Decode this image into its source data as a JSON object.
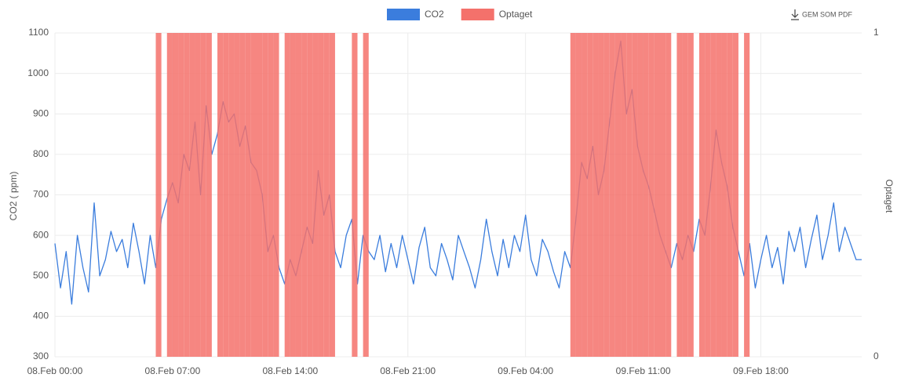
{
  "chart_data": {
    "type": "line",
    "download_label": "GEM SOM PDF",
    "y_label": "CO2 ( ppm)",
    "y2_label": "Optaget",
    "grid": true,
    "legend": "top",
    "x": [
      "08.Feb 00:00",
      "08.Feb 00:20",
      "08.Feb 00:40",
      "08.Feb 01:00",
      "08.Feb 01:20",
      "08.Feb 01:40",
      "08.Feb 02:00",
      "08.Feb 02:20",
      "08.Feb 02:40",
      "08.Feb 03:00",
      "08.Feb 03:20",
      "08.Feb 03:40",
      "08.Feb 04:00",
      "08.Feb 04:20",
      "08.Feb 04:40",
      "08.Feb 05:00",
      "08.Feb 05:20",
      "08.Feb 05:40",
      "08.Feb 06:00",
      "08.Feb 06:20",
      "08.Feb 06:40",
      "08.Feb 07:00",
      "08.Feb 07:20",
      "08.Feb 07:40",
      "08.Feb 08:00",
      "08.Feb 08:20",
      "08.Feb 08:40",
      "08.Feb 09:00",
      "08.Feb 09:20",
      "08.Feb 09:40",
      "08.Feb 10:00",
      "08.Feb 10:20",
      "08.Feb 10:40",
      "08.Feb 11:00",
      "08.Feb 11:20",
      "08.Feb 11:40",
      "08.Feb 12:00",
      "08.Feb 12:20",
      "08.Feb 12:40",
      "08.Feb 13:00",
      "08.Feb 13:20",
      "08.Feb 13:40",
      "08.Feb 14:00",
      "08.Feb 14:20",
      "08.Feb 14:40",
      "08.Feb 15:00",
      "08.Feb 15:20",
      "08.Feb 15:40",
      "08.Feb 16:00",
      "08.Feb 16:20",
      "08.Feb 16:40",
      "08.Feb 17:00",
      "08.Feb 17:20",
      "08.Feb 17:40",
      "08.Feb 18:00",
      "08.Feb 18:20",
      "08.Feb 18:40",
      "08.Feb 19:00",
      "08.Feb 19:20",
      "08.Feb 19:40",
      "08.Feb 20:00",
      "08.Feb 20:20",
      "08.Feb 20:40",
      "08.Feb 21:00",
      "08.Feb 21:20",
      "08.Feb 21:40",
      "08.Feb 22:00",
      "08.Feb 22:20",
      "08.Feb 22:40",
      "08.Feb 23:00",
      "08.Feb 23:20",
      "08.Feb 23:40",
      "09.Feb 00:00",
      "09.Feb 00:20",
      "09.Feb 00:40",
      "09.Feb 01:00",
      "09.Feb 01:20",
      "09.Feb 01:40",
      "09.Feb 02:00",
      "09.Feb 02:20",
      "09.Feb 02:40",
      "09.Feb 03:00",
      "09.Feb 03:20",
      "09.Feb 03:40",
      "09.Feb 04:00",
      "09.Feb 04:20",
      "09.Feb 04:40",
      "09.Feb 05:00",
      "09.Feb 05:20",
      "09.Feb 05:40",
      "09.Feb 06:00",
      "09.Feb 06:20",
      "09.Feb 06:40",
      "09.Feb 07:00",
      "09.Feb 07:20",
      "09.Feb 07:40",
      "09.Feb 08:00",
      "09.Feb 08:20",
      "09.Feb 08:40",
      "09.Feb 09:00",
      "09.Feb 09:20",
      "09.Feb 09:40",
      "09.Feb 10:00",
      "09.Feb 10:20",
      "09.Feb 10:40",
      "09.Feb 11:00",
      "09.Feb 11:20",
      "09.Feb 11:40",
      "09.Feb 12:00",
      "09.Feb 12:20",
      "09.Feb 12:40",
      "09.Feb 13:00",
      "09.Feb 13:20",
      "09.Feb 13:40",
      "09.Feb 14:00",
      "09.Feb 14:20",
      "09.Feb 14:40",
      "09.Feb 15:00",
      "09.Feb 15:20",
      "09.Feb 15:40",
      "09.Feb 16:00",
      "09.Feb 16:20",
      "09.Feb 16:40",
      "09.Feb 17:00",
      "09.Feb 17:20",
      "09.Feb 17:40",
      "09.Feb 18:00",
      "09.Feb 18:20",
      "09.Feb 18:40",
      "09.Feb 19:00",
      "09.Feb 19:20",
      "09.Feb 19:40",
      "09.Feb 20:00",
      "09.Feb 20:20",
      "09.Feb 20:40",
      "09.Feb 21:00",
      "09.Feb 21:20",
      "09.Feb 21:40",
      "09.Feb 22:00",
      "09.Feb 22:20",
      "09.Feb 22:40",
      "09.Feb 23:00",
      "09.Feb 23:20",
      "09.Feb 23:40",
      "10.Feb 00:00"
    ],
    "series": [
      {
        "name": "CO2",
        "color": "#3b7ddd",
        "values": [
          580,
          470,
          560,
          430,
          600,
          520,
          460,
          680,
          500,
          540,
          610,
          560,
          590,
          520,
          630,
          560,
          480,
          600,
          520,
          640,
          690,
          730,
          680,
          800,
          760,
          880,
          700,
          920,
          800,
          850,
          930,
          880,
          900,
          820,
          870,
          780,
          760,
          700,
          560,
          600,
          520,
          480,
          540,
          500,
          560,
          620,
          580,
          760,
          650,
          700,
          560,
          520,
          600,
          640,
          480,
          600,
          560,
          540,
          600,
          510,
          580,
          520,
          600,
          540,
          480,
          570,
          620,
          520,
          500,
          580,
          540,
          490,
          600,
          560,
          520,
          470,
          540,
          640,
          560,
          500,
          590,
          520,
          600,
          560,
          650,
          540,
          500,
          590,
          560,
          510,
          470,
          560,
          520,
          640,
          780,
          740,
          820,
          700,
          760,
          880,
          1000,
          1080,
          900,
          960,
          820,
          760,
          720,
          660,
          600,
          560,
          520,
          580,
          540,
          600,
          560,
          640,
          600,
          720,
          860,
          780,
          720,
          620,
          560,
          500,
          580,
          470,
          540,
          600,
          520,
          570,
          480,
          610,
          560,
          620,
          520,
          590,
          650,
          540,
          600,
          680,
          560,
          620,
          580,
          540,
          540
        ]
      },
      {
        "name": "Optaget",
        "color": "#f4716b",
        "axis": "y2",
        "values": [
          0,
          0,
          0,
          0,
          0,
          0,
          0,
          0,
          0,
          0,
          0,
          0,
          0,
          0,
          0,
          0,
          0,
          0,
          1,
          0,
          1,
          1,
          1,
          1,
          1,
          1,
          1,
          1,
          0,
          1,
          1,
          1,
          1,
          1,
          1,
          1,
          1,
          1,
          1,
          1,
          0,
          1,
          1,
          1,
          1,
          1,
          1,
          1,
          1,
          1,
          0,
          0,
          0,
          1,
          0,
          1,
          0,
          0,
          0,
          0,
          0,
          0,
          0,
          0,
          0,
          0,
          0,
          0,
          0,
          0,
          0,
          0,
          0,
          0,
          0,
          0,
          0,
          0,
          0,
          0,
          0,
          0,
          0,
          0,
          0,
          0,
          0,
          0,
          0,
          0,
          0,
          0,
          1,
          1,
          1,
          1,
          1,
          1,
          1,
          1,
          1,
          1,
          1,
          1,
          1,
          1,
          1,
          1,
          1,
          1,
          0,
          1,
          1,
          1,
          0,
          1,
          1,
          1,
          1,
          1,
          1,
          1,
          0,
          1,
          0,
          0,
          0,
          0,
          0,
          0,
          0,
          0,
          0,
          0,
          0,
          0,
          0,
          0,
          0,
          0,
          0,
          0,
          0,
          0,
          0
        ]
      }
    ],
    "xlim": [
      "08.Feb 00:00",
      "10.Feb 00:00"
    ],
    "xticks": [
      "08.Feb 00:00",
      "08.Feb 07:00",
      "08.Feb 14:00",
      "08.Feb 21:00",
      "09.Feb 04:00",
      "09.Feb 11:00",
      "09.Feb 18:00"
    ],
    "ylim": [
      300,
      1100
    ],
    "yticks": [
      300,
      400,
      500,
      600,
      700,
      800,
      900,
      1000,
      1100
    ],
    "y2lim": [
      0,
      1
    ],
    "y2ticks": [
      0,
      1
    ]
  }
}
